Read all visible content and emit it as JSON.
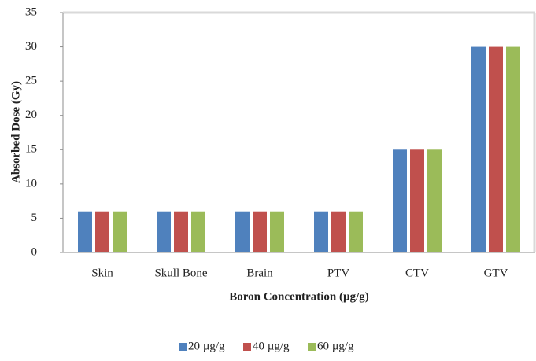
{
  "chart_data": {
    "type": "bar",
    "xlabel": "Boron Concentration (µg/g)",
    "ylabel": "Absorbed Dose (Gy)",
    "categories": [
      "Skin",
      "Skull Bone",
      "Brain",
      "PTV",
      "CTV",
      "GTV"
    ],
    "series": [
      {
        "name": "20 µg/g",
        "color": "#4f81bd",
        "values": [
          6,
          6,
          6,
          6,
          15,
          30
        ]
      },
      {
        "name": "40 µg/g",
        "color": "#c0504d",
        "values": [
          6,
          6,
          6,
          6,
          15,
          30
        ]
      },
      {
        "name": "60 µg/g",
        "color": "#9bbb59",
        "values": [
          6,
          6,
          6,
          6,
          15,
          30
        ]
      }
    ],
    "ylim": [
      0,
      35
    ],
    "yticks": [
      0,
      5,
      10,
      15,
      20,
      25,
      30,
      35
    ],
    "grid": false,
    "legend": "bottom"
  }
}
